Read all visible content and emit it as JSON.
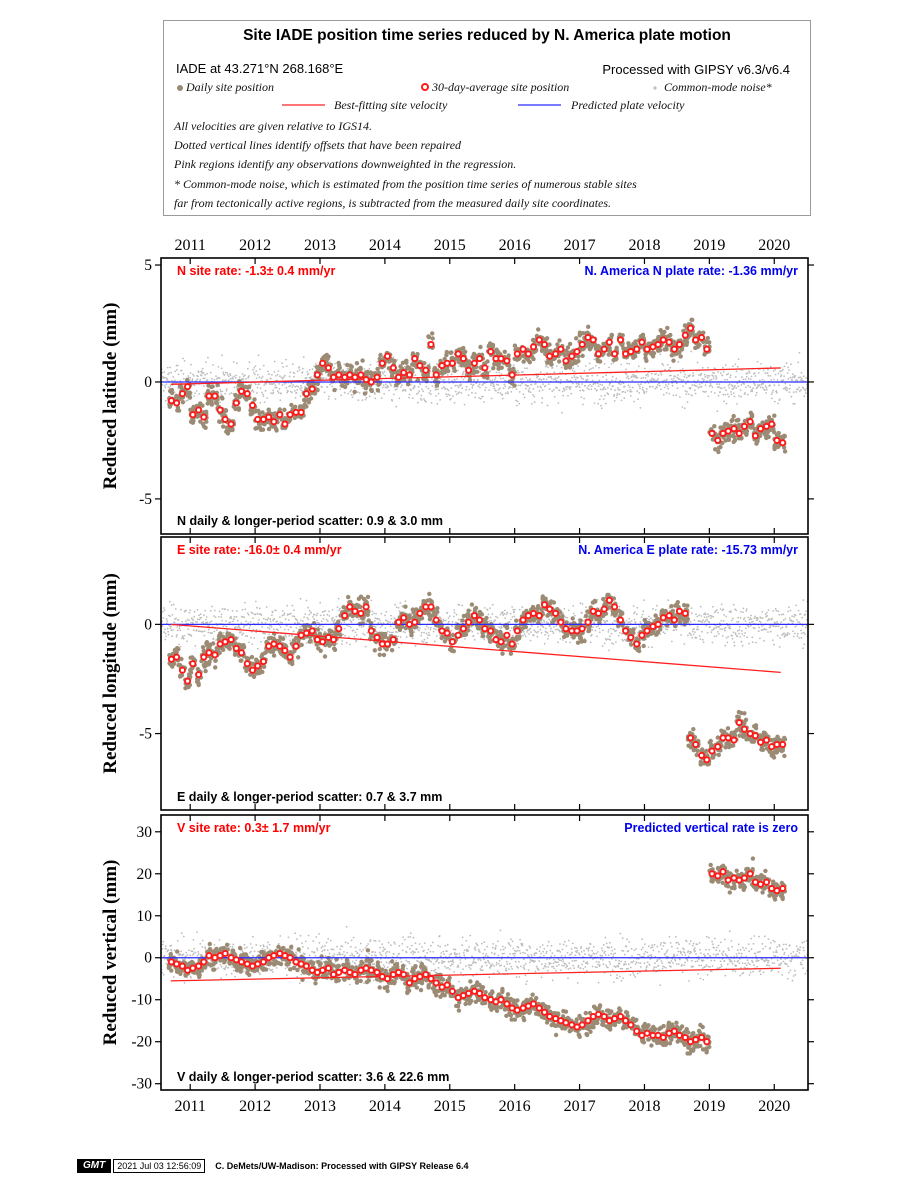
{
  "header": {
    "title": "Site IADE position time series reduced by N. America plate motion",
    "location": "IADE at 43.271°N 268.168°E",
    "processed": "Processed with GIPSY v6.3/v6.4",
    "legend": {
      "daily": "Daily site position",
      "avg30": "30-day-average site position",
      "cmn": "Common-mode noise*",
      "best_fit": "Best-fitting site velocity",
      "predicted": "Predicted plate velocity"
    },
    "notes": [
      "All velocities are given relative to IGS14.",
      "Dotted vertical lines identify offsets that have been repaired",
      "Pink regions identify any observations downweighted in the regression.",
      "* Common-mode noise, which is estimated from the position time series of numerous stable sites",
      "far from tectonically active regions, is subtracted from the measured daily site coordinates."
    ]
  },
  "colors": {
    "daily": "#9c8b74",
    "avg30_ring": "#ff1a1a",
    "cmn": "#bdbdbd",
    "best_fit": "#ff2020",
    "predicted": "#2a2aff",
    "rate_label": "#ff0000",
    "plate_label": "#0000ee"
  },
  "chart_data": [
    {
      "type": "scatter",
      "panel": "north",
      "ylabel": "Reduced latitude (mm)",
      "ylim": [
        -6.5,
        5.3
      ],
      "yticks": [
        5,
        0,
        -5
      ],
      "xlim": [
        2010.55,
        2020.52
      ],
      "xticks": [
        2011,
        2012,
        2013,
        2014,
        2015,
        2016,
        2017,
        2018,
        2019,
        2020
      ],
      "xtick_labels": [
        "2011",
        "2012",
        "2013",
        "2014",
        "2015",
        "2016",
        "2017",
        "2018",
        "2019",
        "2020"
      ],
      "site_rate_label": "N site rate:  -1.3± 0.4 mm/yr",
      "plate_rate_label": "N. America N plate rate: -1.36 mm/yr",
      "scatter_label": "N daily & longer-period scatter:   0.9 &   3.0 mm",
      "best_fit_line": {
        "x": [
          2010.7,
          2020.1
        ],
        "y": [
          -0.1,
          0.6
        ]
      },
      "predicted_line": {
        "x": [
          2010.55,
          2020.52
        ],
        "y": [
          0,
          0
        ]
      },
      "avg30": {
        "x": [
          2010.71,
          2010.79,
          2010.88,
          2010.96,
          2011.04,
          2011.13,
          2011.21,
          2011.29,
          2011.38,
          2011.46,
          2011.54,
          2011.63,
          2011.71,
          2011.79,
          2011.88,
          2011.96,
          2012.04,
          2012.13,
          2012.21,
          2012.29,
          2012.38,
          2012.46,
          2012.54,
          2012.63,
          2012.71,
          2012.79,
          2012.88,
          2012.96,
          2013.04,
          2013.13,
          2013.21,
          2013.29,
          2013.38,
          2013.46,
          2013.54,
          2013.63,
          2013.71,
          2013.79,
          2013.88,
          2013.96,
          2014.04,
          2014.13,
          2014.21,
          2014.29,
          2014.38,
          2014.46,
          2014.54,
          2014.63,
          2014.71,
          2014.79,
          2014.88,
          2014.96,
          2015.04,
          2015.13,
          2015.21,
          2015.29,
          2015.38,
          2015.46,
          2015.54,
          2015.63,
          2015.71,
          2015.79,
          2015.88,
          2015.96,
          2016.04,
          2016.13,
          2016.21,
          2016.29,
          2016.38,
          2016.46,
          2016.54,
          2016.63,
          2016.71,
          2016.79,
          2016.88,
          2016.96,
          2017.04,
          2017.13,
          2017.21,
          2017.29,
          2017.38,
          2017.46,
          2017.54,
          2017.63,
          2017.71,
          2017.79,
          2017.88,
          2017.96,
          2018.04,
          2018.13,
          2018.21,
          2018.29,
          2018.38,
          2018.46,
          2018.54,
          2018.63,
          2018.71,
          2018.79,
          2018.88,
          2018.96,
          2019.04,
          2019.13,
          2019.21,
          2019.29,
          2019.38,
          2019.46,
          2019.54,
          2019.63,
          2019.71,
          2019.79,
          2019.88,
          2019.96,
          2020.04,
          2020.13
        ],
        "y": [
          -0.8,
          -0.9,
          -0.5,
          -0.2,
          -1.4,
          -1.2,
          -1.5,
          -0.6,
          -0.6,
          -1.2,
          -1.6,
          -1.8,
          -0.9,
          -0.4,
          -0.5,
          -1.0,
          -1.6,
          -1.6,
          -1.5,
          -1.7,
          -1.4,
          -1.8,
          -1.4,
          -1.3,
          -1.3,
          -0.5,
          -0.3,
          0.3,
          0.8,
          0.6,
          0.2,
          0.3,
          0.2,
          0.3,
          0.2,
          0.3,
          0.1,
          0.0,
          0.2,
          0.8,
          1.1,
          0.6,
          0.2,
          0.4,
          0.3,
          1.0,
          0.7,
          0.5,
          1.6,
          0.3,
          0.7,
          0.8,
          0.8,
          1.2,
          1.0,
          0.5,
          0.8,
          1.0,
          0.6,
          1.3,
          1.0,
          1.0,
          0.9,
          0.3,
          1.2,
          1.4,
          1.2,
          1.5,
          1.8,
          1.6,
          1.1,
          1.2,
          1.4,
          0.9,
          1.1,
          1.3,
          1.6,
          1.9,
          1.8,
          1.2,
          1.4,
          1.7,
          1.2,
          1.8,
          1.2,
          1.3,
          1.4,
          1.7,
          1.4,
          1.5,
          1.6,
          1.8,
          1.7,
          1.4,
          1.6,
          2.0,
          2.3,
          1.8,
          1.9,
          1.4,
          -2.2,
          -2.5,
          -2.2,
          -2.1,
          -2.0,
          -2.2,
          -1.9,
          -1.7,
          -2.3,
          -2.0,
          -1.9,
          -1.8,
          -2.5,
          -2.6
        ]
      }
    },
    {
      "type": "scatter",
      "panel": "east",
      "ylabel": "Reduced longitude (mm)",
      "ylim": [
        -8.5,
        4.0
      ],
      "yticks": [
        0,
        -5
      ],
      "xlim": [
        2010.55,
        2020.52
      ],
      "xticks": [
        2011,
        2012,
        2013,
        2014,
        2015,
        2016,
        2017,
        2018,
        2019,
        2020
      ],
      "site_rate_label": "E site rate: -16.0± 0.4 mm/yr",
      "plate_rate_label": "N. America E plate rate: -15.73 mm/yr",
      "scatter_label": "E daily & longer-period scatter:   0.7 &   3.7 mm",
      "best_fit_line": {
        "x": [
          2010.7,
          2020.1
        ],
        "y": [
          0.0,
          -2.2
        ]
      },
      "predicted_line": {
        "x": [
          2010.55,
          2020.52
        ],
        "y": [
          0,
          0
        ]
      },
      "avg30": {
        "x": [
          2010.71,
          2010.79,
          2010.88,
          2010.96,
          2011.04,
          2011.13,
          2011.21,
          2011.29,
          2011.38,
          2011.46,
          2011.54,
          2011.63,
          2011.71,
          2011.79,
          2011.88,
          2011.96,
          2012.04,
          2012.13,
          2012.21,
          2012.29,
          2012.38,
          2012.46,
          2012.54,
          2012.63,
          2012.71,
          2012.79,
          2012.88,
          2012.96,
          2013.04,
          2013.13,
          2013.21,
          2013.29,
          2013.38,
          2013.46,
          2013.54,
          2013.63,
          2013.71,
          2013.79,
          2013.88,
          2013.96,
          2014.04,
          2014.13,
          2014.21,
          2014.29,
          2014.38,
          2014.46,
          2014.54,
          2014.63,
          2014.71,
          2014.79,
          2014.88,
          2014.96,
          2015.04,
          2015.13,
          2015.21,
          2015.29,
          2015.38,
          2015.46,
          2015.54,
          2015.63,
          2015.71,
          2015.79,
          2015.88,
          2015.96,
          2016.04,
          2016.13,
          2016.21,
          2016.29,
          2016.38,
          2016.46,
          2016.54,
          2016.63,
          2016.71,
          2016.79,
          2016.88,
          2016.96,
          2017.04,
          2017.13,
          2017.21,
          2017.29,
          2017.38,
          2017.46,
          2017.54,
          2017.63,
          2017.71,
          2017.79,
          2017.88,
          2017.96,
          2018.04,
          2018.13,
          2018.21,
          2018.29,
          2018.38,
          2018.46,
          2018.54,
          2018.63,
          2018.71,
          2018.79,
          2018.88,
          2018.96,
          2019.04,
          2019.13,
          2019.21,
          2019.29,
          2019.38,
          2019.46,
          2019.54,
          2019.63,
          2019.71,
          2019.79,
          2019.88,
          2019.96,
          2020.04,
          2020.13
        ],
        "y": [
          -1.6,
          -1.5,
          -2.1,
          -2.6,
          -1.8,
          -2.3,
          -1.5,
          -1.3,
          -1.4,
          -0.9,
          -0.8,
          -0.7,
          -1.1,
          -1.3,
          -1.8,
          -2.1,
          -1.9,
          -1.7,
          -1.0,
          -0.9,
          -1.0,
          -1.2,
          -1.5,
          -1.0,
          -0.5,
          -0.4,
          -0.3,
          -0.7,
          -0.8,
          -0.6,
          -0.7,
          -0.2,
          0.4,
          0.8,
          0.6,
          0.5,
          0.8,
          -0.3,
          -0.6,
          -0.9,
          -0.9,
          -0.7,
          0.1,
          0.3,
          0.0,
          0.1,
          0.5,
          0.8,
          0.8,
          0.2,
          -0.3,
          -0.4,
          -0.8,
          -0.5,
          -0.2,
          0.1,
          0.4,
          0.2,
          -0.2,
          -0.3,
          -0.7,
          -0.8,
          -0.5,
          -0.9,
          -0.3,
          0.2,
          0.4,
          0.5,
          0.4,
          0.9,
          0.7,
          0.5,
          0.1,
          -0.2,
          -0.3,
          -0.3,
          -0.2,
          0.1,
          0.6,
          0.5,
          0.7,
          1.1,
          0.8,
          0.2,
          -0.3,
          -0.6,
          -0.9,
          -0.5,
          -0.3,
          -0.1,
          0.0,
          0.3,
          0.4,
          0.2,
          0.6,
          0.5,
          -5.2,
          -5.5,
          -6.0,
          -6.2,
          -5.8,
          -5.6,
          -5.2,
          -5.2,
          -5.3,
          -4.5,
          -4.8,
          -5.0,
          -5.1,
          -5.4,
          -5.3,
          -5.6,
          -5.5,
          -5.5
        ]
      }
    },
    {
      "type": "scatter",
      "panel": "vertical",
      "ylabel": "Reduced vertical (mm)",
      "ylim": [
        -31.5,
        34.0
      ],
      "yticks": [
        30,
        20,
        10,
        0,
        -10,
        -20,
        -30
      ],
      "xlim": [
        2010.55,
        2020.52
      ],
      "xticks": [
        2011,
        2012,
        2013,
        2014,
        2015,
        2016,
        2017,
        2018,
        2019,
        2020
      ],
      "site_rate_label": "V site rate:   0.3± 1.7 mm/yr",
      "plate_rate_label": "Predicted vertical rate is zero",
      "scatter_label": "V daily & longer-period scatter:   3.6 &  22.6 mm",
      "best_fit_line": {
        "x": [
          2010.7,
          2020.1
        ],
        "y": [
          -5.5,
          -2.5
        ]
      },
      "predicted_line": {
        "x": [
          2010.55,
          2020.52
        ],
        "y": [
          0,
          0
        ]
      },
      "avg30": {
        "x": [
          2010.71,
          2010.79,
          2010.88,
          2010.96,
          2011.04,
          2011.13,
          2011.21,
          2011.29,
          2011.38,
          2011.46,
          2011.54,
          2011.63,
          2011.71,
          2011.79,
          2011.88,
          2011.96,
          2012.04,
          2012.13,
          2012.21,
          2012.29,
          2012.38,
          2012.46,
          2012.54,
          2012.63,
          2012.71,
          2012.79,
          2012.88,
          2012.96,
          2013.04,
          2013.13,
          2013.21,
          2013.29,
          2013.38,
          2013.46,
          2013.54,
          2013.63,
          2013.71,
          2013.79,
          2013.88,
          2013.96,
          2014.04,
          2014.13,
          2014.21,
          2014.29,
          2014.38,
          2014.46,
          2014.54,
          2014.63,
          2014.71,
          2014.79,
          2014.88,
          2014.96,
          2015.04,
          2015.13,
          2015.21,
          2015.29,
          2015.38,
          2015.46,
          2015.54,
          2015.63,
          2015.71,
          2015.79,
          2015.88,
          2015.96,
          2016.04,
          2016.13,
          2016.21,
          2016.29,
          2016.38,
          2016.46,
          2016.54,
          2016.63,
          2016.71,
          2016.79,
          2016.88,
          2016.96,
          2017.04,
          2017.13,
          2017.21,
          2017.29,
          2017.38,
          2017.46,
          2017.54,
          2017.63,
          2017.71,
          2017.79,
          2017.88,
          2017.96,
          2018.04,
          2018.13,
          2018.21,
          2018.29,
          2018.38,
          2018.46,
          2018.54,
          2018.63,
          2018.71,
          2018.79,
          2018.88,
          2018.96,
          2019.04,
          2019.13,
          2019.21,
          2019.29,
          2019.38,
          2019.46,
          2019.54,
          2019.63,
          2019.71,
          2019.79,
          2019.88,
          2019.96,
          2020.04,
          2020.13
        ],
        "y": [
          -1.0,
          -1.5,
          -2.0,
          -3.0,
          -2.5,
          -2.0,
          -1.0,
          0.5,
          0.0,
          0.5,
          1.0,
          0.0,
          -0.5,
          -1.0,
          -1.5,
          -2.0,
          -1.5,
          -1.0,
          0.0,
          0.5,
          1.0,
          0.5,
          0.0,
          -1.0,
          -1.5,
          -2.0,
          -3.0,
          -3.5,
          -3.0,
          -2.5,
          -4.0,
          -3.5,
          -3.0,
          -3.5,
          -4.0,
          -3.0,
          -2.5,
          -3.0,
          -3.5,
          -4.5,
          -5.0,
          -4.0,
          -3.5,
          -4.0,
          -6.0,
          -5.0,
          -4.5,
          -4.0,
          -5.0,
          -6.0,
          -7.0,
          -6.5,
          -8.0,
          -9.5,
          -9.0,
          -8.5,
          -8.0,
          -8.5,
          -9.5,
          -10.0,
          -10.5,
          -10.0,
          -11.0,
          -12.0,
          -12.5,
          -12.0,
          -11.5,
          -11.0,
          -12.0,
          -13.0,
          -14.0,
          -14.5,
          -15.0,
          -15.5,
          -16.0,
          -16.5,
          -16.0,
          -15.0,
          -14.0,
          -13.5,
          -14.0,
          -15.0,
          -14.5,
          -14.0,
          -15.0,
          -16.0,
          -17.5,
          -18.5,
          -18.0,
          -18.5,
          -18.5,
          -19.0,
          -18.0,
          -17.5,
          -18.5,
          -19.0,
          -20.0,
          -19.5,
          -19.0,
          -20.0,
          20.0,
          19.5,
          20.5,
          18.5,
          19.0,
          18.5,
          19.0,
          20.0,
          18.0,
          17.5,
          18.0,
          16.5,
          16.0,
          16.5
        ]
      }
    }
  ],
  "footer": {
    "logo": "GMT",
    "timestamp": "2021 Jul 03 12:56:09",
    "credit": "C. DeMets/UW-Madison: Processed with GIPSY Release 6.4"
  }
}
